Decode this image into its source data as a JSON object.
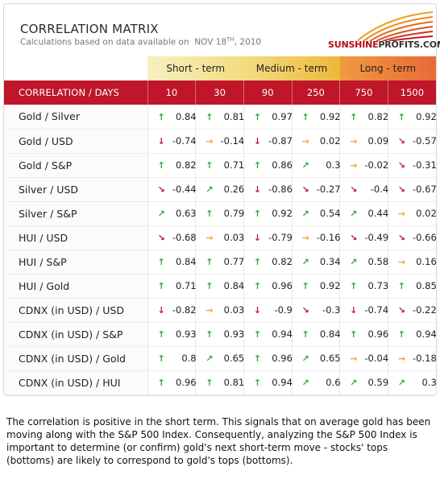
{
  "header": {
    "title": "CORRELATION MATRIX",
    "subtitle_prefix": "Calculations based on data available on",
    "date_month": "NOV",
    "date_day": "18",
    "date_suffix": "TH",
    "date_year": ", 2010"
  },
  "logo": {
    "part1": "SUNSHINE",
    "part2": "PROFITS.COM"
  },
  "bands": {
    "short": "Short - term",
    "medium": "Medium - term",
    "long": "Long - term"
  },
  "columns": {
    "label": "CORRELATION / DAYS",
    "days": [
      "10",
      "30",
      "90",
      "250",
      "750",
      "1500"
    ]
  },
  "arrow_colors": {
    "up": "#3aa13a",
    "down": "#c21a2a",
    "right": "#f0a81c",
    "diag_up": "#3aa13a",
    "diag_down": "#c21a2a"
  },
  "rows": [
    {
      "label": "Gold / Silver",
      "cells": [
        {
          "v": "0.84",
          "a": "up"
        },
        {
          "v": "0.81",
          "a": "up"
        },
        {
          "v": "0.97",
          "a": "up"
        },
        {
          "v": "0.92",
          "a": "up"
        },
        {
          "v": "0.82",
          "a": "up"
        },
        {
          "v": "0.92",
          "a": "up"
        }
      ]
    },
    {
      "label": "Gold / USD",
      "cells": [
        {
          "v": "-0.74",
          "a": "down"
        },
        {
          "v": "-0.14",
          "a": "right"
        },
        {
          "v": "-0.87",
          "a": "down"
        },
        {
          "v": "0.02",
          "a": "right"
        },
        {
          "v": "0.09",
          "a": "right"
        },
        {
          "v": "-0.57",
          "a": "diag_down"
        }
      ]
    },
    {
      "label": "Gold / S&P",
      "cells": [
        {
          "v": "0.82",
          "a": "up"
        },
        {
          "v": "0.71",
          "a": "up"
        },
        {
          "v": "0.86",
          "a": "up"
        },
        {
          "v": "0.3",
          "a": "diag_up"
        },
        {
          "v": "-0.02",
          "a": "right"
        },
        {
          "v": "-0.31",
          "a": "diag_down"
        }
      ]
    },
    {
      "label": "Silver / USD",
      "cells": [
        {
          "v": "-0.44",
          "a": "diag_down"
        },
        {
          "v": "0.26",
          "a": "diag_up"
        },
        {
          "v": "-0.86",
          "a": "down"
        },
        {
          "v": "-0.27",
          "a": "diag_down"
        },
        {
          "v": "-0.4",
          "a": "diag_down"
        },
        {
          "v": "-0.67",
          "a": "diag_down"
        }
      ]
    },
    {
      "label": "Silver / S&P",
      "cells": [
        {
          "v": "0.63",
          "a": "diag_up"
        },
        {
          "v": "0.79",
          "a": "up"
        },
        {
          "v": "0.92",
          "a": "up"
        },
        {
          "v": "0.54",
          "a": "diag_up"
        },
        {
          "v": "0.44",
          "a": "diag_up"
        },
        {
          "v": "0.02",
          "a": "right"
        }
      ]
    },
    {
      "label": "HUI / USD",
      "cells": [
        {
          "v": "-0.68",
          "a": "diag_down"
        },
        {
          "v": "0.03",
          "a": "right"
        },
        {
          "v": "-0.79",
          "a": "down"
        },
        {
          "v": "-0.16",
          "a": "right"
        },
        {
          "v": "-0.49",
          "a": "diag_down"
        },
        {
          "v": "-0.66",
          "a": "diag_down"
        }
      ]
    },
    {
      "label": "HUI / S&P",
      "cells": [
        {
          "v": "0.84",
          "a": "up"
        },
        {
          "v": "0.77",
          "a": "up"
        },
        {
          "v": "0.82",
          "a": "up"
        },
        {
          "v": "0.34",
          "a": "diag_up"
        },
        {
          "v": "0.58",
          "a": "diag_up"
        },
        {
          "v": "0.16",
          "a": "right"
        }
      ]
    },
    {
      "label": "HUI / Gold",
      "cells": [
        {
          "v": "0.71",
          "a": "up"
        },
        {
          "v": "0.84",
          "a": "up"
        },
        {
          "v": "0.96",
          "a": "up"
        },
        {
          "v": "0.92",
          "a": "up"
        },
        {
          "v": "0.73",
          "a": "up"
        },
        {
          "v": "0.85",
          "a": "up"
        }
      ]
    },
    {
      "label": "CDNX (in USD) / USD",
      "cells": [
        {
          "v": "-0.82",
          "a": "down"
        },
        {
          "v": "0.03",
          "a": "right"
        },
        {
          "v": "-0.9",
          "a": "down"
        },
        {
          "v": "-0.3",
          "a": "diag_down"
        },
        {
          "v": "-0.74",
          "a": "down"
        },
        {
          "v": "-0.22",
          "a": "diag_down"
        }
      ]
    },
    {
      "label": "CDNX (in USD) / S&P",
      "cells": [
        {
          "v": "0.93",
          "a": "up"
        },
        {
          "v": "0.93",
          "a": "up"
        },
        {
          "v": "0.94",
          "a": "up"
        },
        {
          "v": "0.84",
          "a": "up"
        },
        {
          "v": "0.96",
          "a": "up"
        },
        {
          "v": "0.94",
          "a": "up"
        }
      ]
    },
    {
      "label": "CDNX (in USD) / Gold",
      "cells": [
        {
          "v": "0.8",
          "a": "up"
        },
        {
          "v": "0.65",
          "a": "diag_up"
        },
        {
          "v": "0.96",
          "a": "up"
        },
        {
          "v": "0.65",
          "a": "diag_up"
        },
        {
          "v": "-0.04",
          "a": "right"
        },
        {
          "v": "-0.18",
          "a": "right"
        }
      ]
    },
    {
      "label": "CDNX (in USD) / HUI",
      "cells": [
        {
          "v": "0.96",
          "a": "up"
        },
        {
          "v": "0.81",
          "a": "up"
        },
        {
          "v": "0.94",
          "a": "up"
        },
        {
          "v": "0.6",
          "a": "diag_up"
        },
        {
          "v": "0.59",
          "a": "diag_up"
        },
        {
          "v": "0.3",
          "a": "diag_up"
        }
      ]
    }
  ],
  "note": "The correlation is positive in the short term. This signals that on average gold has been moving along with the S&P 500 Index. Consequently, analyzing the S&P 500 Index is important to determine (or confirm) gold's next short-term move - stocks' tops (bottoms) are likely to correspond to gold's tops (bottoms)."
}
